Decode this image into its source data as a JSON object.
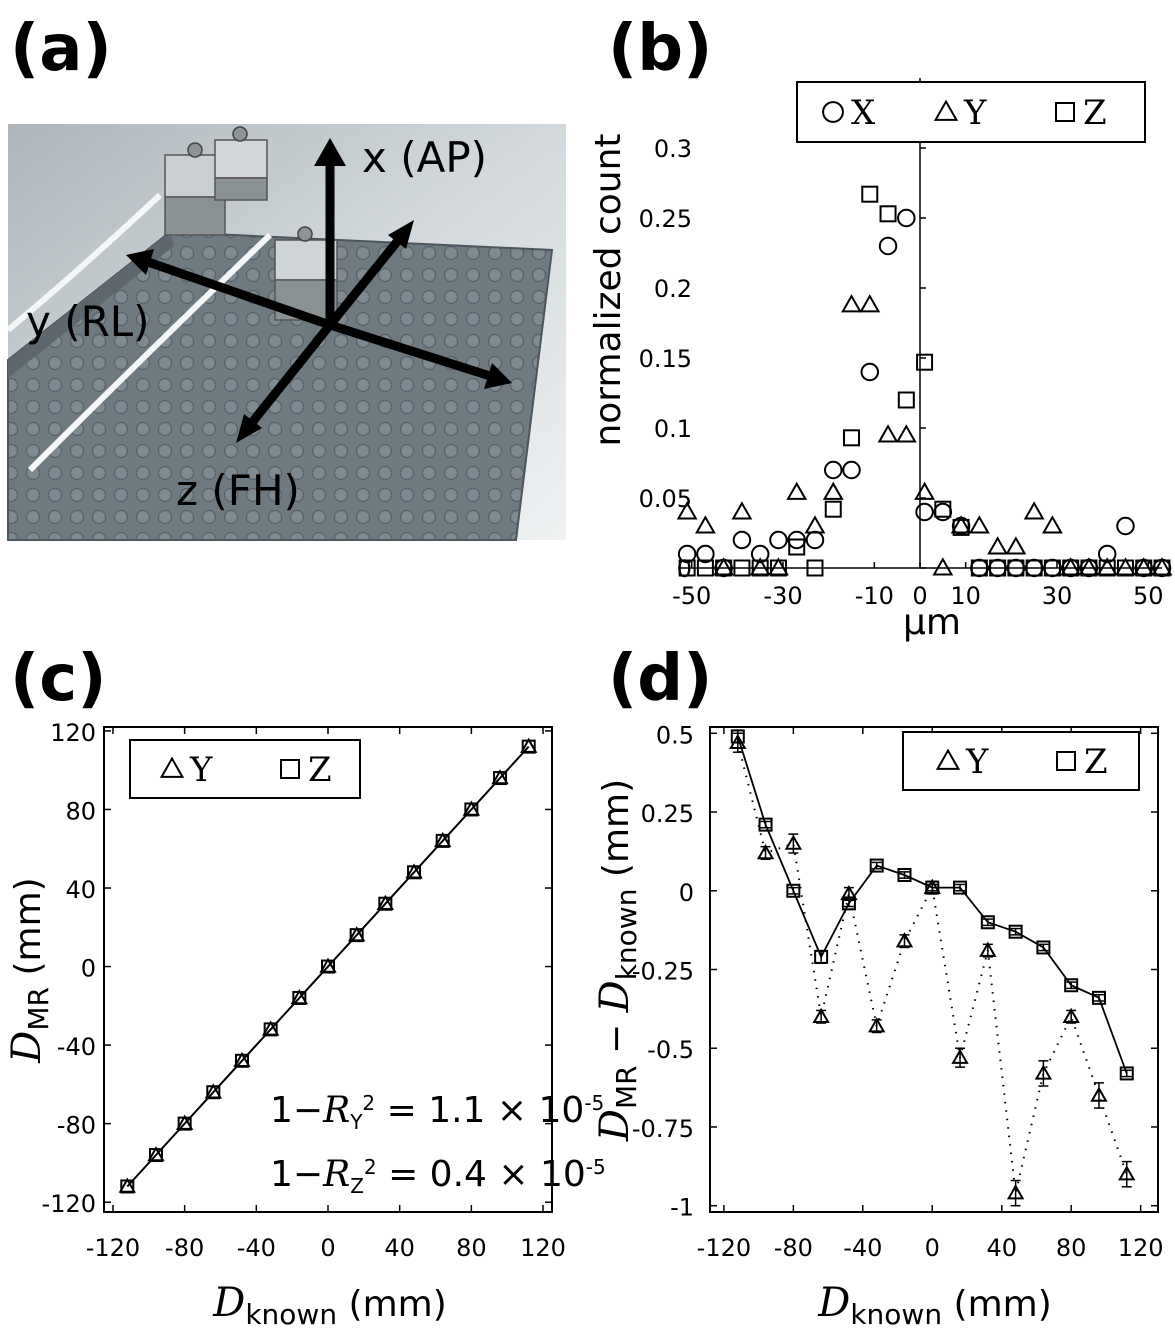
{
  "panel_labels": {
    "a": "(a)",
    "b": "(b)",
    "c": "(c)",
    "d": "(d)"
  },
  "photo": {
    "axis_x": "x (AP)",
    "axis_y": "y (RL)",
    "axis_z": "z (FH)"
  },
  "chart_data": [
    {
      "type": "scatter",
      "panel": "(b)",
      "ylabel": "normalized count",
      "xlabel": "μm",
      "xlim": [
        -53,
        53
      ],
      "ylim": [
        0,
        0.35
      ],
      "xticks": [
        -50,
        -30,
        -10,
        0,
        10,
        30,
        50
      ],
      "yticks": [
        0,
        0.05,
        0.1,
        0.15,
        0.2,
        0.25,
        0.3
      ],
      "ytick_labels": [
        "0",
        "0.05",
        "0.1",
        "0.15",
        "0.2",
        "0.25",
        "0.3"
      ],
      "legend": {
        "position": "top-right",
        "entries": [
          "X",
          "Y",
          "Z"
        ]
      },
      "series": [
        {
          "name": "X",
          "marker": "circle",
          "x": [
            -51,
            -47,
            -43,
            -39,
            -35,
            -31,
            -27,
            -23,
            -19,
            -15,
            -11,
            -7,
            -3,
            1,
            5,
            9,
            13,
            17,
            21,
            25,
            29,
            33,
            37,
            41,
            45,
            49,
            53
          ],
          "y": [
            0.01,
            0.01,
            0,
            0.02,
            0.01,
            0.02,
            0.02,
            0.02,
            0.07,
            0.07,
            0.14,
            0.23,
            0.25,
            0.04,
            0.04,
            0.03,
            0,
            0,
            0,
            0,
            0,
            0,
            0,
            0.01,
            0.03,
            0,
            0
          ]
        },
        {
          "name": "Y",
          "marker": "triangle",
          "x": [
            -51,
            -47,
            -43,
            -39,
            -35,
            -31,
            -27,
            -23,
            -19,
            -15,
            -11,
            -7,
            -3,
            1,
            5,
            9,
            13,
            17,
            21,
            25,
            29,
            33,
            37,
            41,
            45,
            49,
            53
          ],
          "y": [
            0.04,
            0.03,
            0,
            0.04,
            0,
            0,
            0.054,
            0.03,
            0.054,
            0.188,
            0.188,
            0.095,
            0.095,
            0.054,
            0,
            0.03,
            0.03,
            0.015,
            0.015,
            0.04,
            0.03,
            0,
            0,
            0,
            0,
            0,
            0
          ]
        },
        {
          "name": "Z",
          "marker": "square",
          "x": [
            -51,
            -47,
            -43,
            -39,
            -35,
            -31,
            -27,
            -23,
            -19,
            -15,
            -11,
            -7,
            -3,
            1,
            5,
            9,
            13,
            17,
            21,
            25,
            29,
            33,
            37,
            41,
            45,
            49,
            53
          ],
          "y": [
            0,
            0,
            0,
            0,
            0,
            0,
            0.015,
            0,
            0.042,
            0.093,
            0.267,
            0.253,
            0.12,
            0.147,
            0.042,
            0.029,
            0,
            0,
            0,
            0,
            0,
            0,
            0,
            0,
            0,
            0,
            0
          ]
        }
      ]
    },
    {
      "type": "line",
      "panel": "(c)",
      "xlabel_main": "D",
      "xlabel_sub": "known",
      "xlabel_unit": " (mm)",
      "ylabel_main": "D",
      "ylabel_sub": "MR",
      "ylabel_unit": " (mm)",
      "xlim": [
        -125,
        125
      ],
      "ylim": [
        -125,
        122
      ],
      "xticks": [
        -120,
        -80,
        -40,
        0,
        40,
        80,
        120
      ],
      "yticks": [
        -120,
        -80,
        -40,
        0,
        40,
        80,
        120
      ],
      "legend": {
        "position": "top-left",
        "entries": [
          "Y",
          "Z"
        ]
      },
      "annotations": [
        "1−R_Y^2 = 1.1 × 10^-5",
        "1−R_Z^2 = 0.4 × 10^-5"
      ],
      "series": [
        {
          "name": "Y",
          "marker": "triangle",
          "x": [
            -112,
            -96,
            -80,
            -64,
            -48,
            -32,
            -16,
            0,
            16,
            32,
            48,
            64,
            80,
            96,
            112
          ],
          "y": [
            -112,
            -96,
            -80,
            -64,
            -48,
            -32,
            -16,
            0,
            16,
            32,
            48,
            64,
            80,
            96,
            112
          ]
        },
        {
          "name": "Z",
          "marker": "square",
          "x": [
            -112,
            -96,
            -80,
            -64,
            -48,
            -32,
            -16,
            0,
            16,
            32,
            48,
            64,
            80,
            96,
            112
          ],
          "y": [
            -112,
            -96,
            -80,
            -64,
            -48,
            -32,
            -16,
            0,
            16,
            32,
            48,
            64,
            80,
            96,
            112
          ]
        }
      ]
    },
    {
      "type": "line",
      "panel": "(d)",
      "xlabel_main": "D",
      "xlabel_sub": "known",
      "xlabel_unit": " (mm)",
      "ylabel_main": "D",
      "ylabel_sub": "MR",
      "ylabel_mid": " − ",
      "ylabel_main2": "D",
      "ylabel_sub2": "known",
      "ylabel_unit": " (mm)",
      "xlim": [
        -128,
        130
      ],
      "ylim": [
        -1.02,
        0.52
      ],
      "xticks": [
        -120,
        -80,
        -40,
        0,
        40,
        80,
        120
      ],
      "yticks": [
        -1,
        -0.75,
        -0.5,
        -0.25,
        0,
        0.25,
        0.5
      ],
      "ytick_labels": [
        "-1",
        "-0.75",
        "-0.5",
        "-0.25",
        "0",
        "0.25",
        "0.5"
      ],
      "legend": {
        "position": "top-right",
        "entries": [
          "Y",
          "Z"
        ]
      },
      "series": [
        {
          "name": "Y",
          "marker": "triangle",
          "line": "dotted",
          "x": [
            -112,
            -96,
            -80,
            -64,
            -48,
            -32,
            -16,
            0,
            16,
            32,
            48,
            64,
            80,
            96,
            112
          ],
          "y": [
            0.47,
            0.12,
            0.15,
            -0.4,
            -0.01,
            -0.43,
            -0.16,
            0.01,
            -0.53,
            -0.19,
            -0.96,
            -0.58,
            -0.4,
            -0.65,
            -0.9
          ],
          "err": [
            0.03,
            0.02,
            0.03,
            0.02,
            0.02,
            0.02,
            0.02,
            0.02,
            0.03,
            0.02,
            0.04,
            0.04,
            0.02,
            0.04,
            0.04
          ]
        },
        {
          "name": "Z",
          "marker": "square",
          "line": "solid",
          "x": [
            -112,
            -96,
            -80,
            -64,
            -48,
            -32,
            -16,
            0,
            16,
            32,
            48,
            64,
            80,
            96,
            112
          ],
          "y": [
            0.49,
            0.21,
            0.0,
            -0.21,
            -0.04,
            0.08,
            0.05,
            0.01,
            0.01,
            -0.1,
            -0.13,
            -0.18,
            -0.3,
            -0.34,
            -0.58
          ],
          "err": [
            0.02,
            0.01,
            0.01,
            0.02,
            0.01,
            0.01,
            0.01,
            0.01,
            0.01,
            0.01,
            0.01,
            0.01,
            0.01,
            0.01,
            0.01
          ]
        }
      ]
    }
  ]
}
